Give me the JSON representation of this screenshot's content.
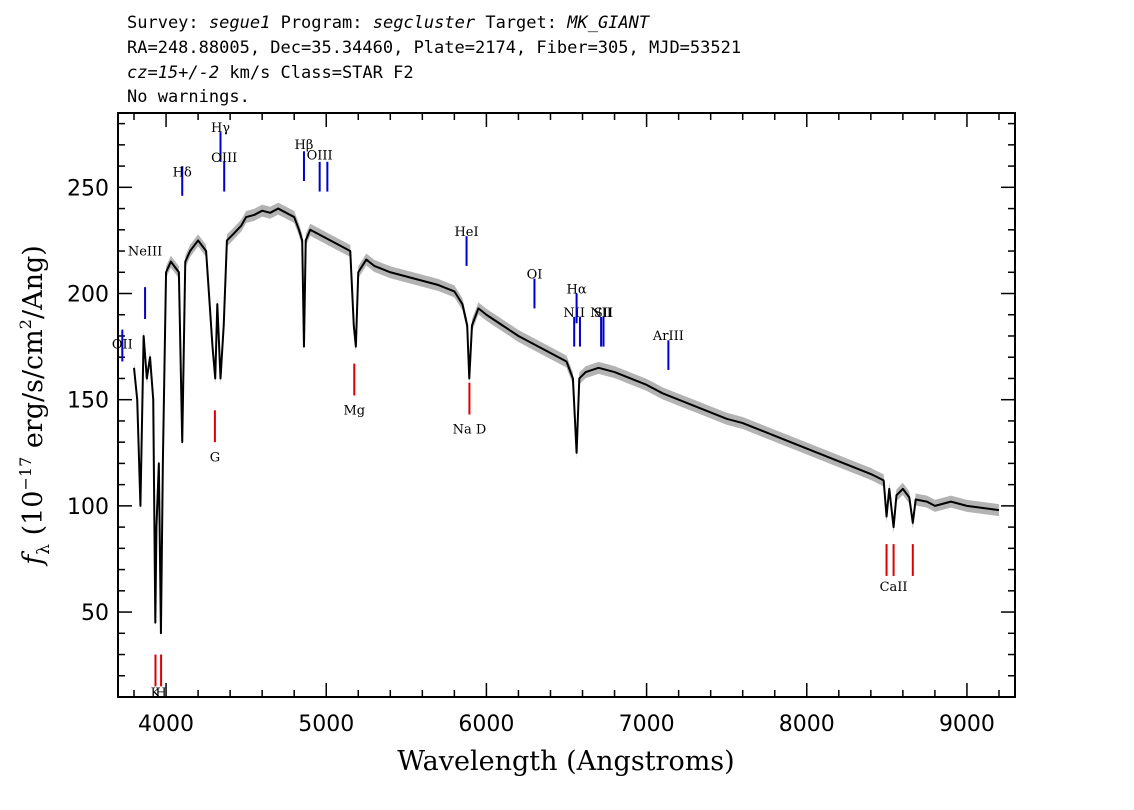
{
  "header": {
    "survey_label": "Survey:",
    "survey": "segue1",
    "program_label": "Program:",
    "program": "segcluster",
    "target_label": "Target:",
    "target": "MK_GIANT",
    "line2": "RA=248.88005, Dec=35.34460, Plate=2174, Fiber=305, MJD=53521",
    "cz": "cz=15+/-2",
    "cz_rest": " km/s Class=STAR F2",
    "line4": "No warnings."
  },
  "chart_data": {
    "type": "line",
    "title": "",
    "xlabel": "Wavelength (Angstroms)",
    "ylabel": "f_λ (10^-17 erg/s/cm^2/Ang)",
    "ylabel_parts": {
      "f": "f",
      "sub": "λ",
      "pre": " (10",
      "exp1": "−17",
      "mid": " erg/s/cm",
      "exp2": "2",
      "post": "/Ang)"
    },
    "xlim": [
      3700,
      9300
    ],
    "ylim": [
      10,
      285
    ],
    "x_ticks": [
      4000,
      5000,
      6000,
      7000,
      8000,
      9000
    ],
    "y_ticks": [
      50,
      100,
      150,
      200,
      250
    ],
    "grid": false,
    "colors": {
      "spectrum": "#000000",
      "error_band": "#b3b3b3",
      "emission": "#0000cc",
      "absorption": "#dd0000"
    },
    "series": [
      {
        "name": "",
        "x": [
          3800,
          3820,
          3840,
          3860,
          3880,
          3900,
          3920,
          3933,
          3940,
          3955,
          3968,
          3980,
          4000,
          4030,
          4060,
          4080,
          4101,
          4120,
          4150,
          4200,
          4250,
          4290,
          4307,
          4320,
          4340,
          4360,
          4380,
          4420,
          4470,
          4500,
          4550,
          4600,
          4650,
          4700,
          4750,
          4800,
          4830,
          4850,
          4861,
          4872,
          4900,
          4950,
          5000,
          5050,
          5100,
          5150,
          5172,
          5185,
          5200,
          5250,
          5300,
          5400,
          5500,
          5600,
          5700,
          5800,
          5850,
          5880,
          5893,
          5910,
          5950,
          6000,
          6100,
          6200,
          6300,
          6400,
          6500,
          6540,
          6563,
          6580,
          6620,
          6700,
          6800,
          6900,
          7000,
          7100,
          7200,
          7300,
          7400,
          7500,
          7600,
          7700,
          7800,
          7900,
          8000,
          8100,
          8200,
          8300,
          8400,
          8480,
          8498,
          8515,
          8542,
          8560,
          8600,
          8640,
          8662,
          8680,
          8750,
          8800,
          8900,
          9000,
          9100,
          9200
        ],
        "y": [
          165,
          150,
          100,
          180,
          160,
          170,
          150,
          45,
          90,
          120,
          40,
          120,
          210,
          215,
          212,
          210,
          130,
          215,
          220,
          225,
          220,
          175,
          160,
          195,
          160,
          185,
          225,
          228,
          232,
          236,
          237,
          239,
          238,
          240,
          238,
          236,
          230,
          225,
          175,
          225,
          230,
          228,
          226,
          224,
          222,
          220,
          185,
          175,
          210,
          216,
          213,
          210,
          208,
          206,
          204,
          201,
          195,
          185,
          160,
          185,
          193,
          190,
          185,
          180,
          176,
          172,
          168,
          160,
          125,
          160,
          163,
          165,
          163,
          160,
          157,
          153,
          150,
          147,
          144,
          141,
          139,
          136,
          133,
          130,
          127,
          124,
          121,
          118,
          115,
          112,
          95,
          108,
          90,
          105,
          108,
          104,
          92,
          103,
          102,
          100,
          102,
          100,
          99,
          98
        ]
      }
    ],
    "emission_lines": [
      {
        "label": "OII",
        "wave": 3727,
        "label_y": 174,
        "y1": 168,
        "y2": 183
      },
      {
        "label": "NeIII",
        "wave": 3869,
        "label_y": 218,
        "y1": 188,
        "y2": 203
      },
      {
        "label": "Hδ",
        "wave": 4101,
        "label_y": 255,
        "y1": 246,
        "y2": 260
      },
      {
        "label": "Hγ",
        "wave": 4340,
        "label_y": 276,
        "y1": 262,
        "y2": 276
      },
      {
        "label": "OIII",
        "wave": 4363,
        "label_y": 262,
        "y1": 248,
        "y2": 262
      },
      {
        "label": "Hβ",
        "wave": 4861,
        "label_y": 268,
        "y1": 253,
        "y2": 267
      },
      {
        "label": "OIII",
        "wave": 4959,
        "label_y": 263,
        "y1": 248,
        "y2": 262
      },
      {
        "label": "",
        "wave": 5007,
        "label_y": 0,
        "y1": 248,
        "y2": 262
      },
      {
        "label": "HeI",
        "wave": 5876,
        "label_y": 227,
        "y1": 213,
        "y2": 227
      },
      {
        "label": "OI",
        "wave": 6300,
        "label_y": 207,
        "y1": 193,
        "y2": 207
      },
      {
        "label": "NII",
        "wave": 6548,
        "label_y": 189,
        "y1": 175,
        "y2": 189
      },
      {
        "label": "Hα",
        "wave": 6563,
        "label_y": 200,
        "y1": 186,
        "y2": 200
      },
      {
        "label": "",
        "wave": 6584,
        "label_y": 0,
        "y1": 175,
        "y2": 189
      },
      {
        "label": "NII",
        "wave": 6716,
        "label_y": 189,
        "y1": 175,
        "y2": 189
      },
      {
        "label": "SII",
        "wave": 6731,
        "label_y": 189,
        "y1": 175,
        "y2": 189
      },
      {
        "label": "ArIII",
        "wave": 7136,
        "label_y": 178,
        "y1": 164,
        "y2": 178
      }
    ],
    "absorption_lines": [
      {
        "label": "K",
        "wave": 3934,
        "label_y": 10,
        "y1": 15,
        "y2": 30
      },
      {
        "label": "H",
        "wave": 3969,
        "label_y": 10,
        "y1": 15,
        "y2": 30
      },
      {
        "label": "G",
        "wave": 4305,
        "label_y": 121,
        "y1": 130,
        "y2": 145
      },
      {
        "label": "Mg",
        "wave": 5175,
        "label_y": 143,
        "y1": 152,
        "y2": 167
      },
      {
        "label": "Na  D",
        "wave": 5894,
        "label_y": 134,
        "y1": 143,
        "y2": 158
      },
      {
        "label": "CaII",
        "wave": 8542,
        "label_y": 60,
        "y1": 67,
        "y2": 82
      },
      {
        "label": "",
        "wave": 8498,
        "label_y": 0,
        "y1": 67,
        "y2": 82
      },
      {
        "label": "",
        "wave": 8662,
        "label_y": 0,
        "y1": 67,
        "y2": 82
      }
    ]
  }
}
